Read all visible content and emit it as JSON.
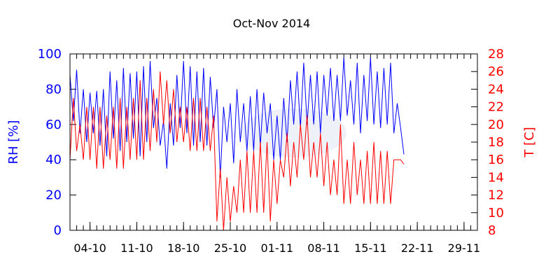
{
  "chart_data": {
    "type": "line",
    "title": "Oct-Nov 2014",
    "xlabel": "",
    "ylabel": "RH [%]",
    "y2label": "T [C]",
    "x_unit": "days since 01-10-2014",
    "xlim": [
      0,
      61
    ],
    "ylim": [
      0,
      100
    ],
    "y2lim": [
      8,
      28
    ],
    "yticks": [
      0,
      20,
      40,
      60,
      80,
      100
    ],
    "y2ticks": [
      8,
      10,
      12,
      14,
      16,
      18,
      20,
      22,
      24,
      26,
      28
    ],
    "xticks": [
      {
        "day": 3,
        "label": "04-10"
      },
      {
        "day": 10,
        "label": "11-10"
      },
      {
        "day": 17,
        "label": "18-10"
      },
      {
        "day": 24,
        "label": "25-10"
      },
      {
        "day": 31,
        "label": "01-11"
      },
      {
        "day": 38,
        "label": "08-11"
      },
      {
        "day": 45,
        "label": "15-11"
      },
      {
        "day": 52,
        "label": "22-11"
      },
      {
        "day": 59,
        "label": "29-11"
      }
    ],
    "colors": {
      "rh": "#0000ff",
      "t": "#ff0000",
      "axis": "#000000"
    },
    "series": [
      {
        "name": "RH",
        "axis": "left",
        "step_days": 0.5,
        "values": [
          88,
          62,
          91,
          55,
          80,
          50,
          78,
          55,
          79,
          48,
          80,
          42,
          90,
          52,
          85,
          45,
          92,
          50,
          89,
          52,
          90,
          42,
          93,
          50,
          96,
          58,
          75,
          48,
          62,
          35,
          72,
          48,
          88,
          58,
          96,
          55,
          93,
          48,
          90,
          50,
          92,
          48,
          87,
          58,
          80,
          30,
          70,
          50,
          72,
          38,
          80,
          50,
          72,
          45,
          76,
          45,
          80,
          48,
          78,
          55,
          72,
          40,
          65,
          40,
          75,
          50,
          85,
          60,
          90,
          58,
          95,
          60,
          88,
          60,
          90,
          55,
          88,
          65,
          92,
          62,
          88,
          62,
          98,
          65,
          85,
          60,
          95,
          55,
          88,
          62,
          98,
          60,
          90,
          58,
          92,
          60,
          95,
          55,
          72,
          58,
          43
        ]
      },
      {
        "name": "T",
        "axis": "right",
        "step_days": 0.5,
        "values": [
          16,
          23,
          17,
          20,
          16,
          22,
          16,
          22,
          15,
          22,
          15,
          21,
          16,
          22,
          15,
          23,
          15,
          22,
          16,
          23,
          16,
          25,
          16,
          23,
          17,
          24,
          18,
          26,
          20,
          25,
          19,
          24,
          18,
          22,
          18,
          22,
          17,
          23,
          17,
          23,
          17,
          22,
          17,
          21,
          9,
          15,
          8,
          14,
          9,
          13,
          10,
          16,
          10,
          17,
          10,
          17,
          10,
          18,
          10,
          18,
          9,
          16,
          11,
          16,
          14,
          19,
          13,
          18,
          14,
          20,
          16,
          21,
          14,
          18,
          14,
          19,
          13,
          18,
          12,
          16,
          12,
          20,
          11,
          16,
          11,
          18,
          12,
          16,
          11,
          17,
          11,
          18,
          11,
          17,
          11,
          17,
          11,
          16,
          16,
          16,
          15.5
        ]
      }
    ]
  }
}
